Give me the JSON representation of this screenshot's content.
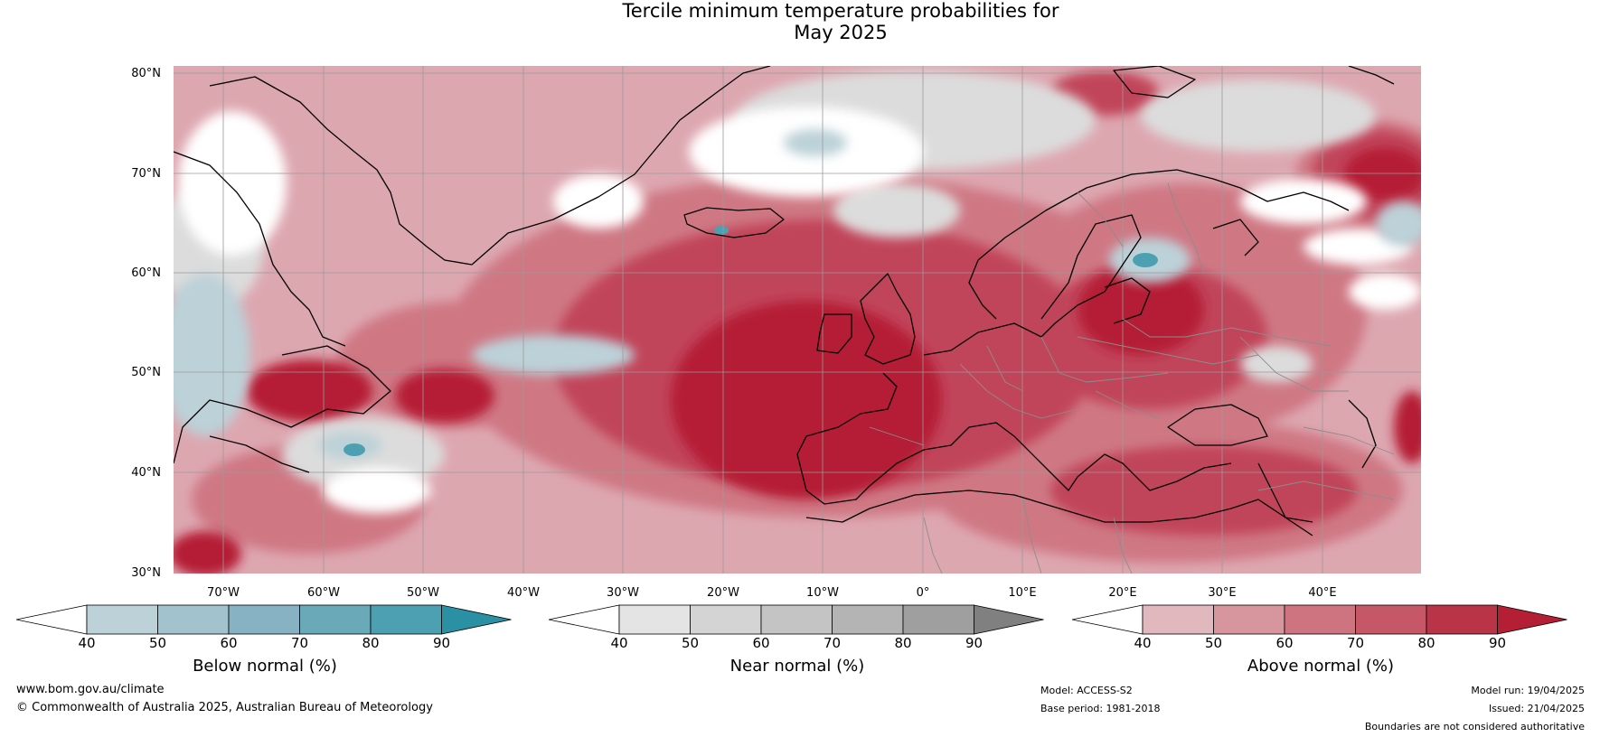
{
  "title": {
    "line1": "Tercile minimum temperature probabilities for",
    "line2": "May 2025"
  },
  "map": {
    "lat_labels": [
      "80°N",
      "70°N",
      "60°N",
      "50°N",
      "40°N",
      "30°N"
    ],
    "lon_labels": [
      "70°W",
      "60°W",
      "50°W",
      "40°W",
      "30°W",
      "20°W",
      "10°W",
      "0°",
      "10°E",
      "20°E",
      "30°E",
      "40°E"
    ],
    "extent": {
      "lon_min": -75,
      "lon_max": 50,
      "lat_min": 30,
      "lat_max": 81
    }
  },
  "colorbars": [
    {
      "label": "Below normal (%)",
      "ticks": [
        "40",
        "50",
        "60",
        "70",
        "80",
        "90"
      ],
      "colors": [
        "#bcd1d8",
        "#a2c3ce",
        "#86b2c3",
        "#69a9b8",
        "#4ca0b2",
        "#2b90a3"
      ],
      "end_color": "#ffffff"
    },
    {
      "label": "Near normal (%)",
      "ticks": [
        "40",
        "50",
        "60",
        "70",
        "80",
        "90"
      ],
      "colors": [
        "#e4e4e4",
        "#d4d4d4",
        "#c4c4c4",
        "#b3b4b3",
        "#a09f9f",
        "#808080"
      ],
      "end_color": "#ffffff"
    },
    {
      "label": "Above normal (%)",
      "ticks": [
        "40",
        "50",
        "60",
        "70",
        "80",
        "90"
      ],
      "colors": [
        "#e2b8bf",
        "#d7959e",
        "#ce7480",
        "#c65767",
        "#ba3447",
        "#b51f36"
      ],
      "end_color": "#ffffff"
    }
  ],
  "footer": {
    "website": "www.bom.gov.au/climate",
    "copyright": "© Commonwealth of Australia 2025, Australian Bureau of Meteorology",
    "model": "Model: ACCESS-S2",
    "base_period": "Base period: 1981-2018",
    "model_run": "Model run: 19/04/2025",
    "issued": "Issued: 21/04/2025",
    "disclaimer": "Boundaries are not considered authoritative"
  },
  "colors": {
    "above_base": "#dda7b0",
    "above_mid": "#c65767",
    "above_high": "#b51f36",
    "below_low": "#bcd1d8",
    "below_high": "#4ca0b2",
    "near": "#e1e1e1",
    "coast": "#000000",
    "border": "#8c8c8c",
    "grid": "#9a9a9a"
  }
}
